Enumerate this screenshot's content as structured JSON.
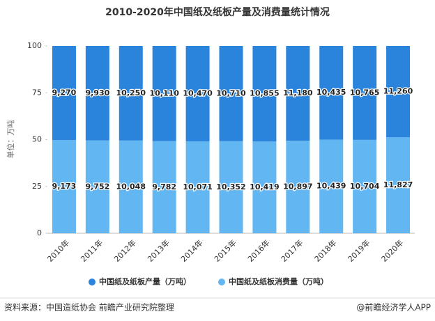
{
  "chart_data": {
    "type": "percent_stacked_bar",
    "title": "2010-2020年中国纸及纸板产量及消费量统计情况",
    "y_label": "单位：万吨",
    "categories": [
      "2010年",
      "2011年",
      "2012年",
      "2013年",
      "2014年",
      "2015年",
      "2016年",
      "2017年",
      "2018年",
      "2019年",
      "2020年"
    ],
    "series": [
      {
        "name": "中国纸及纸板产量（万吨）",
        "color": "#2a84dc",
        "values": [
          9270,
          9930,
          10250,
          10110,
          10470,
          10710,
          10855,
          11180,
          10435,
          10765,
          11260
        ],
        "value_labels": [
          "9,270",
          "9,930",
          "10,250",
          "10,110",
          "10,470",
          "10,710",
          "10,855",
          "11,180",
          "10,435",
          "10,765",
          "11,260"
        ]
      },
      {
        "name": "中国纸及纸板消费量（万吨）",
        "color": "#62b6f2",
        "values": [
          9173,
          9752,
          10048,
          9782,
          10071,
          10352,
          10419,
          10897,
          10439,
          10704,
          11827
        ],
        "value_labels": [
          "9,173",
          "9,752",
          "10,048",
          "9,782",
          "10,071",
          "10,352",
          "10,419",
          "10,897",
          "10,439",
          "10,704",
          "11,827"
        ]
      }
    ],
    "ylim": [
      0,
      100
    ],
    "yticks": [
      0,
      25,
      50,
      75,
      100
    ],
    "source": "资料来源：中国造纸协会 前瞻产业研究院整理",
    "brand": "@前瞻经济学人APP"
  }
}
